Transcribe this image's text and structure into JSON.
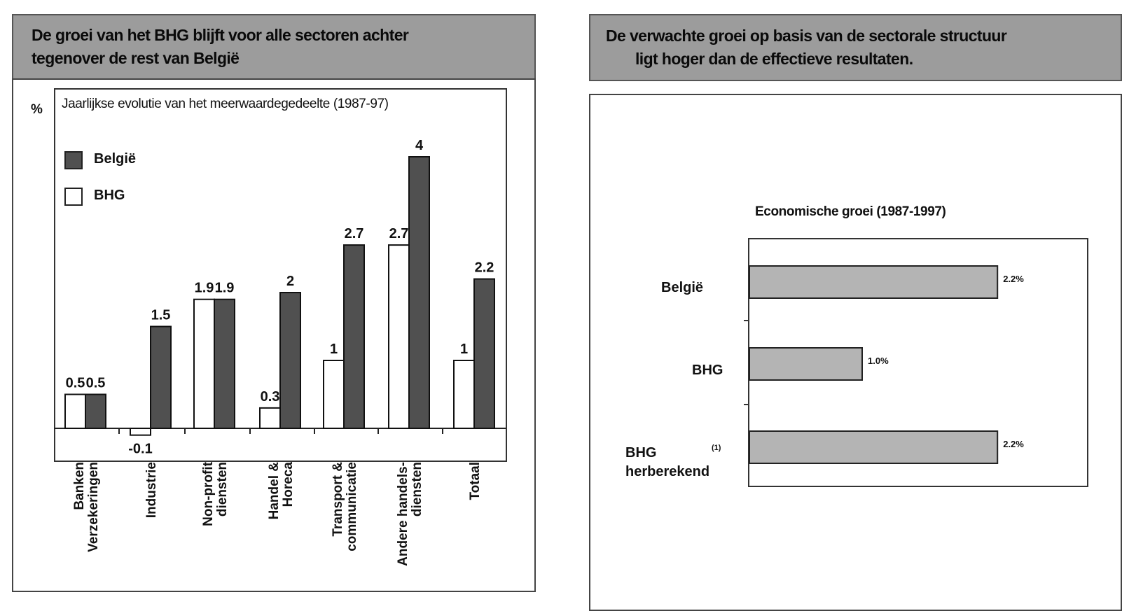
{
  "left_panel": {
    "title_line1": "De groei van het BHG blijft voor alle sectoren achter",
    "title_line2": "tegenover de rest van België",
    "unit": "%",
    "subtitle": "Jaarlijkse evolutie van het meerwaardegedeelte (1987-97)"
  },
  "right_panel": {
    "title_line1": "De verwachte groei op basis van de sectorale structuur",
    "title_line2": "ligt hoger dan de effectieve resultaten."
  },
  "chart_data": [
    {
      "type": "bar",
      "title": "Jaarlijkse evolutie van het meerwaardegedeelte (1987-97)",
      "ylabel": "%",
      "categories": [
        [
          "Banken",
          "Verzekeringen"
        ],
        [
          "Industrie"
        ],
        [
          "Non-profit",
          "diensten"
        ],
        [
          "Handel &",
          "Horeca"
        ],
        [
          "Transport &",
          "communicatie"
        ],
        [
          "Andere handels-",
          "diensten"
        ],
        [
          "Totaal"
        ]
      ],
      "series": [
        {
          "name": "BHG",
          "color": "#ffffff",
          "values": [
            0.5,
            -0.1,
            1.9,
            0.3,
            1,
            2.7,
            1
          ]
        },
        {
          "name": "België",
          "color": "#505050",
          "values": [
            0.5,
            1.5,
            1.9,
            2,
            2.7,
            4,
            2.2
          ]
        }
      ],
      "value_labels": [
        [
          "0.5",
          "-0.1",
          "1.9",
          "0.3",
          "1",
          "2.7",
          "1"
        ],
        [
          "0.5",
          "1.5",
          "1.9",
          "2",
          "2.7",
          "4",
          "2.2"
        ]
      ],
      "legend": [
        "België",
        "BHG"
      ],
      "legend_position": "top-left",
      "ylim": [
        -0.4,
        4.2
      ]
    },
    {
      "type": "bar",
      "orientation": "horizontal",
      "title": "Economische groei (1987-1997)",
      "categories": [
        "België",
        "BHG",
        "BHG"
      ],
      "category_sublabel": "herberekend",
      "footnote_marker": "(1)",
      "values": [
        2.2,
        1.0,
        2.2
      ],
      "value_labels": [
        "2.2%",
        "1.0%",
        "2.2%"
      ],
      "bar_color": "#b4b4b4",
      "xlim": [
        0,
        3
      ]
    }
  ]
}
